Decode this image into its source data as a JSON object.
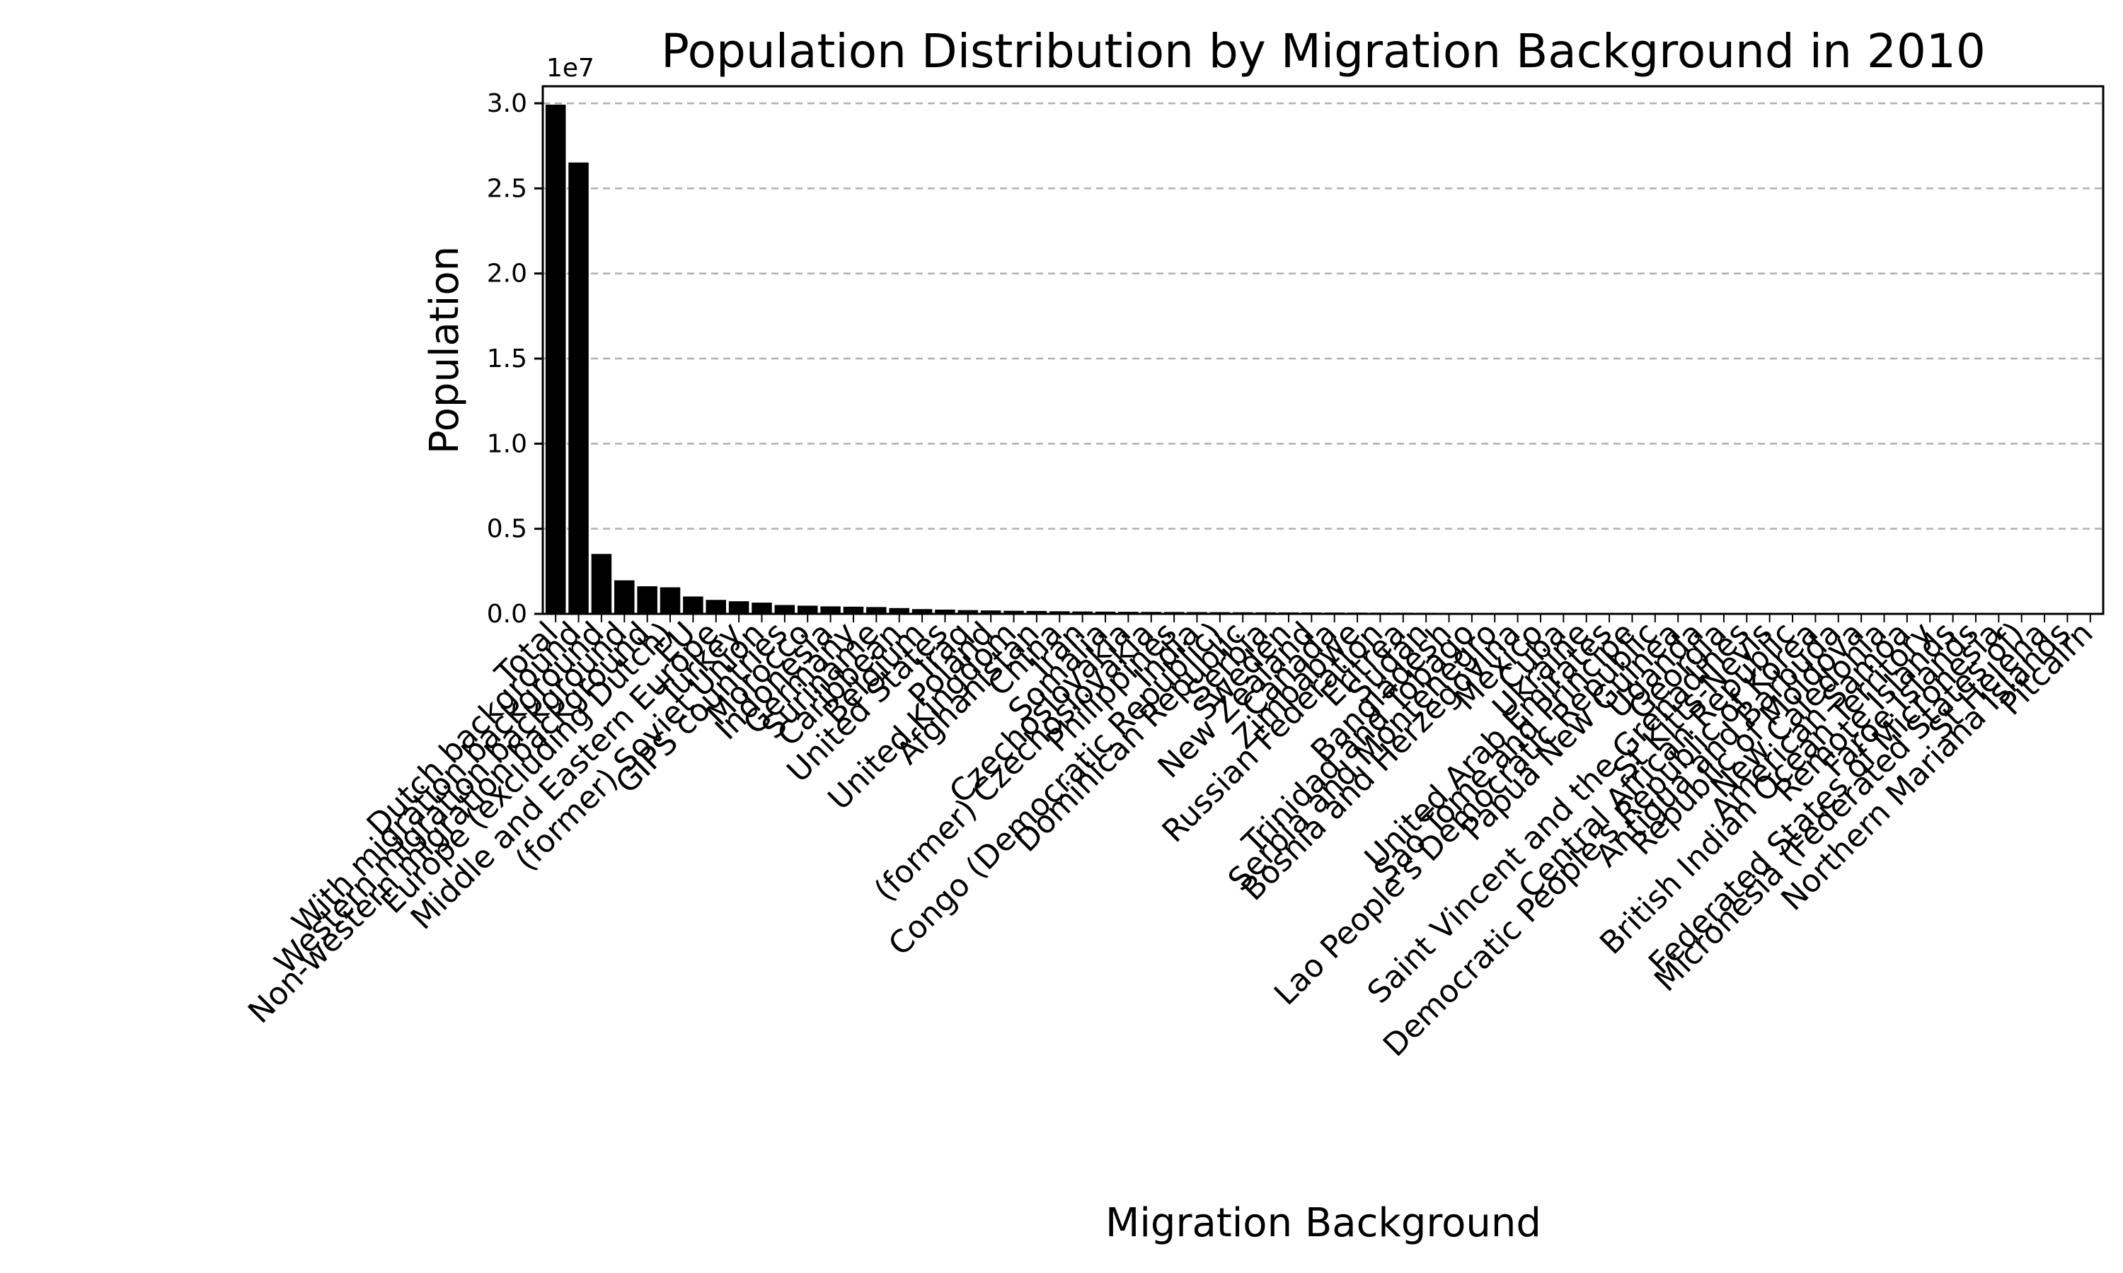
{
  "chart_data": {
    "type": "bar",
    "title": "Population Distribution by Migration Background in 2010",
    "xlabel": "Migration Background",
    "ylabel": "Population",
    "y_multiplier_label": "1e7",
    "ylim": [
      0,
      31000000
    ],
    "y_ticks": [
      0,
      5000000,
      10000000,
      15000000,
      20000000,
      25000000,
      30000000
    ],
    "y_tick_labels": [
      "0.0",
      "0.5",
      "1.0",
      "1.5",
      "2.0",
      "2.5",
      "3.0"
    ],
    "grid": "horizontal dashed",
    "bar_color": "#000000",
    "categories": [
      "Total",
      "Dutch background",
      "With migration background",
      "Western migration background",
      "Non-western migration background",
      "Europe (excluding Dutch)",
      "EU",
      "Middle and Eastern Europe",
      "Turkey",
      "(former) Soviet Union",
      "GIPS countries",
      "Morocco",
      "Indonesia",
      "Germany",
      "Suriname",
      "Caribbean",
      "Belgium",
      "United States",
      "Iraq",
      "Poland",
      "United Kingdom",
      "Afghanistan",
      "China",
      "Iran",
      "Somalia",
      "Czechoslovakia",
      "(former) Czechoslovakia",
      "Philippines",
      "India",
      "Congo (Democratic Republic)",
      "Dominican Republic",
      "Serbia",
      "Sweden",
      "New Zealand",
      "Canada",
      "Zimbabwe",
      "Russian Federation",
      "Eritrea",
      "Sudan",
      "Bangladesh",
      "Trinidad and Tobago",
      "Serbia and Montenegro",
      "Bosnia and Herzegovina",
      "Mexico",
      "Cuba",
      "Ukraine",
      "United Arab Emirates",
      "Sao Tome and Principe",
      "Lao People's Democratic Republic",
      "Papua New Guinea",
      "Uganda",
      "Georgia",
      "Saint Vincent and the Grenadines",
      "St Kitts-Nevis",
      "Central African Republic",
      "Democratic People's Republic of Korea",
      "Antigua and Barbuda",
      "Republic of Moldova",
      "New Caledonia",
      "American Samoa",
      "British Indian Ocean Territory",
      "Remote Islands",
      "Faroe Islands",
      "Federated States of Micronesia",
      "Micronesia (Federated States of)",
      "St Helena",
      "Northern Mariana Islands",
      "Pitcairn"
    ],
    "values": [
      29900000,
      26500000,
      3500000,
      1950000,
      1600000,
      1540000,
      1000000,
      800000,
      720000,
      640000,
      500000,
      460000,
      420000,
      400000,
      380000,
      320000,
      260000,
      230000,
      200000,
      180000,
      160000,
      150000,
      130000,
      120000,
      110000,
      100000,
      95000,
      90000,
      85000,
      80000,
      75000,
      70000,
      66000,
      62000,
      58000,
      55000,
      52000,
      49000,
      46000,
      43000,
      40000,
      37000,
      34000,
      31000,
      28000,
      25000,
      22000,
      19000,
      17000,
      15000,
      13000,
      11000,
      9500,
      8000,
      6500,
      5200,
      4200,
      3400,
      2700,
      2100,
      1600,
      1200,
      900,
      650,
      450,
      300,
      180,
      90
    ]
  }
}
